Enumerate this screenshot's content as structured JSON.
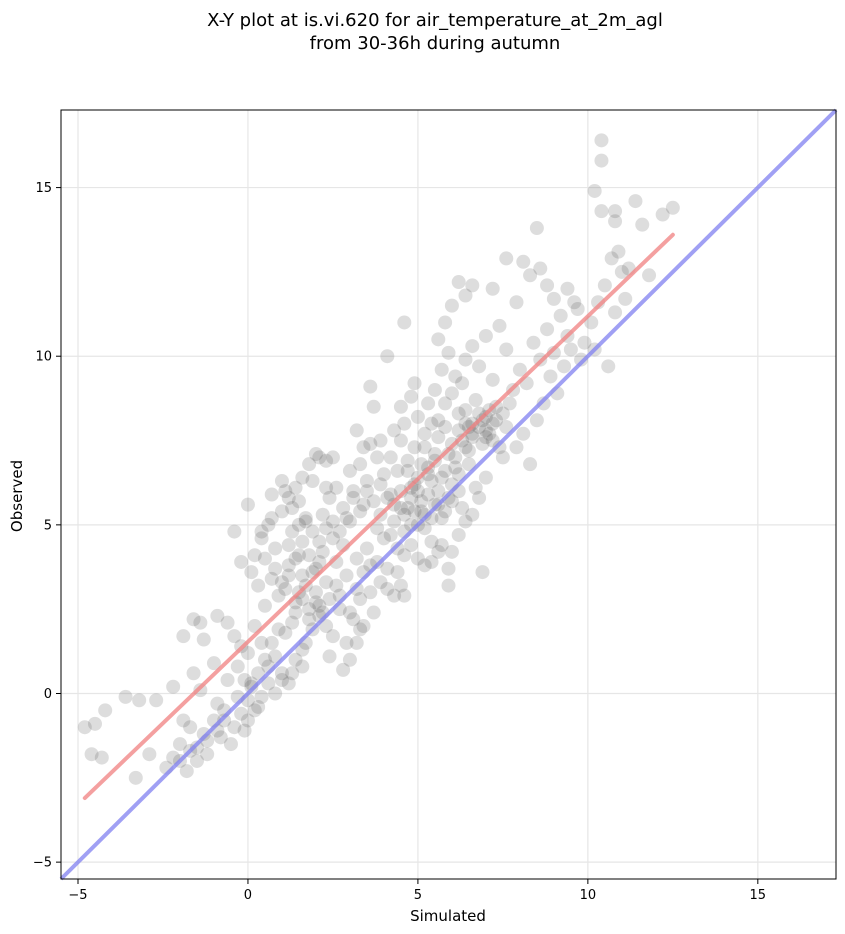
{
  "chart_data": {
    "type": "scatter",
    "title_lines": [
      "X-Y plot at is.vi.620 for air_temperature_at_2m_agl",
      "from 30-36h during autumn"
    ],
    "xlabel": "Simulated",
    "ylabel": "Observed",
    "xlim": [
      -5.5,
      17.3
    ],
    "ylim": [
      -5.5,
      17.3
    ],
    "xticks": [
      -5,
      0,
      5,
      10,
      15
    ],
    "yticks": [
      -5,
      0,
      5,
      10,
      15
    ],
    "xtick_labels": [
      "−5",
      "0",
      "5",
      "10",
      "15"
    ],
    "ytick_labels": [
      "−5",
      "0",
      "5",
      "10",
      "15"
    ],
    "grid": true,
    "point_color": "#555555",
    "regression_line": {
      "color": "#f08080",
      "x": [
        -4.8,
        12.5
      ],
      "y": [
        -3.1,
        13.6
      ]
    },
    "identity_line": {
      "color": "#8080f0",
      "x": [
        -5.5,
        17.3
      ],
      "y": [
        -5.5,
        17.3
      ]
    },
    "points": [
      [
        -4.8,
        -1.0
      ],
      [
        -4.5,
        -0.9
      ],
      [
        -4.6,
        -1.8
      ],
      [
        -4.2,
        -0.5
      ],
      [
        -4.3,
        -1.9
      ],
      [
        -3.6,
        -0.1
      ],
      [
        -3.2,
        -0.2
      ],
      [
        -2.7,
        -0.2
      ],
      [
        -3.3,
        -2.5
      ],
      [
        -2.9,
        -1.8
      ],
      [
        -2.2,
        0.2
      ],
      [
        -1.9,
        1.7
      ],
      [
        -1.6,
        2.2
      ],
      [
        -1.4,
        2.1
      ],
      [
        -1.3,
        1.6
      ],
      [
        -1.0,
        0.9
      ],
      [
        -0.9,
        2.3
      ],
      [
        -0.6,
        2.1
      ],
      [
        -0.4,
        1.7
      ],
      [
        -0.2,
        1.4
      ],
      [
        -2.4,
        -2.2
      ],
      [
        -2.0,
        -2.0
      ],
      [
        -1.8,
        -2.3
      ],
      [
        -1.5,
        -1.6
      ],
      [
        -1.3,
        -1.2
      ],
      [
        -1.0,
        -0.8
      ],
      [
        -0.7,
        -0.5
      ],
      [
        -0.5,
        -1.5
      ],
      [
        -0.3,
        -0.1
      ],
      [
        0.0,
        -0.2
      ],
      [
        -1.7,
        -1.0
      ],
      [
        -1.2,
        -1.8
      ],
      [
        -0.8,
        -1.3
      ],
      [
        -1.6,
        0.6
      ],
      [
        -1.4,
        0.1
      ],
      [
        -0.9,
        -0.3
      ],
      [
        -0.6,
        0.4
      ],
      [
        -0.3,
        0.8
      ],
      [
        0.1,
        0.3
      ],
      [
        0.3,
        -0.4
      ],
      [
        0.0,
        1.2
      ],
      [
        0.2,
        2.0
      ],
      [
        0.4,
        1.5
      ],
      [
        0.6,
        0.8
      ],
      [
        0.8,
        1.1
      ],
      [
        1.0,
        0.4
      ],
      [
        1.1,
        1.8
      ],
      [
        1.3,
        0.6
      ],
      [
        1.4,
        2.4
      ],
      [
        1.6,
        1.3
      ],
      [
        0.3,
        3.2
      ],
      [
        0.5,
        2.6
      ],
      [
        0.7,
        3.4
      ],
      [
        0.9,
        2.9
      ],
      [
        1.1,
        3.1
      ],
      [
        1.2,
        3.8
      ],
      [
        1.4,
        2.7
      ],
      [
        1.6,
        3.5
      ],
      [
        1.8,
        2.2
      ],
      [
        2.0,
        3.0
      ],
      [
        0.2,
        4.1
      ],
      [
        0.4,
        4.6
      ],
      [
        0.6,
        5.0
      ],
      [
        0.8,
        4.3
      ],
      [
        1.0,
        5.4
      ],
      [
        1.1,
        6.0
      ],
      [
        1.3,
        4.8
      ],
      [
        1.5,
        5.7
      ],
      [
        1.7,
        5.1
      ],
      [
        1.9,
        6.3
      ],
      [
        -0.4,
        4.8
      ],
      [
        -0.2,
        3.9
      ],
      [
        0.0,
        5.6
      ],
      [
        0.1,
        3.6
      ],
      [
        0.5,
        4.0
      ],
      [
        0.7,
        5.9
      ],
      [
        1.2,
        4.4
      ],
      [
        1.5,
        4.1
      ],
      [
        2.1,
        7.0
      ],
      [
        2.3,
        6.9
      ],
      [
        2.0,
        3.7
      ],
      [
        2.2,
        4.2
      ],
      [
        2.3,
        3.3
      ],
      [
        2.5,
        4.6
      ],
      [
        2.6,
        3.9
      ],
      [
        2.8,
        4.4
      ],
      [
        2.9,
        3.5
      ],
      [
        3.0,
        5.1
      ],
      [
        3.2,
        4.0
      ],
      [
        3.4,
        5.6
      ],
      [
        2.1,
        2.6
      ],
      [
        2.3,
        2.0
      ],
      [
        2.5,
        1.7
      ],
      [
        2.7,
        2.5
      ],
      [
        2.9,
        1.5
      ],
      [
        3.1,
        2.2
      ],
      [
        3.3,
        1.9
      ],
      [
        2.4,
        1.1
      ],
      [
        2.8,
        0.7
      ],
      [
        3.0,
        1.0
      ],
      [
        2.2,
        5.3
      ],
      [
        2.4,
        5.8
      ],
      [
        2.6,
        6.1
      ],
      [
        2.8,
        5.5
      ],
      [
        3.0,
        6.6
      ],
      [
        3.1,
        6.0
      ],
      [
        3.3,
        6.8
      ],
      [
        3.5,
        6.3
      ],
      [
        3.6,
        7.4
      ],
      [
        3.8,
        7.0
      ],
      [
        3.5,
        4.3
      ],
      [
        3.6,
        3.8
      ],
      [
        3.8,
        4.9
      ],
      [
        3.9,
        5.3
      ],
      [
        4.0,
        4.6
      ],
      [
        4.2,
        5.9
      ],
      [
        4.3,
        5.1
      ],
      [
        4.5,
        5.5
      ],
      [
        4.6,
        4.8
      ],
      [
        4.8,
        6.1
      ],
      [
        3.9,
        3.3
      ],
      [
        4.1,
        3.7
      ],
      [
        4.3,
        2.9
      ],
      [
        4.4,
        3.6
      ],
      [
        4.6,
        4.1
      ],
      [
        4.8,
        4.4
      ],
      [
        5.0,
        4.0
      ],
      [
        5.2,
        3.8
      ],
      [
        5.4,
        4.5
      ],
      [
        5.6,
        4.2
      ],
      [
        4.0,
        6.5
      ],
      [
        4.2,
        7.0
      ],
      [
        4.4,
        6.6
      ],
      [
        4.5,
        7.5
      ],
      [
        4.7,
        6.9
      ],
      [
        4.9,
        7.3
      ],
      [
        5.0,
        6.4
      ],
      [
        5.2,
        7.7
      ],
      [
        5.3,
        6.7
      ],
      [
        5.5,
        7.1
      ],
      [
        4.8,
        5.8
      ],
      [
        4.9,
        5.4
      ],
      [
        5.0,
        6.0
      ],
      [
        5.1,
        5.7
      ],
      [
        5.2,
        5.3
      ],
      [
        5.3,
        5.9
      ],
      [
        5.4,
        6.3
      ],
      [
        5.5,
        5.6
      ],
      [
        5.6,
        6.0
      ],
      [
        5.7,
        5.2
      ],
      [
        5.8,
        6.6
      ],
      [
        5.9,
        5.8
      ],
      [
        6.0,
        6.2
      ],
      [
        6.1,
        7.0
      ],
      [
        6.2,
        6.5
      ],
      [
        6.3,
        5.5
      ],
      [
        6.4,
        7.3
      ],
      [
        6.5,
        6.8
      ],
      [
        6.6,
        7.6
      ],
      [
        6.7,
        6.1
      ],
      [
        6.8,
        7.9
      ],
      [
        6.9,
        7.4
      ],
      [
        7.0,
        8.2
      ],
      [
        7.1,
        7.7
      ],
      [
        7.2,
        8.0
      ],
      [
        7.3,
        8.5
      ],
      [
        7.4,
        7.3
      ],
      [
        7.5,
        8.3
      ],
      [
        7.6,
        7.9
      ],
      [
        7.7,
        8.6
      ],
      [
        6.9,
        8.1
      ],
      [
        7.0,
        7.8
      ],
      [
        7.1,
        8.4
      ],
      [
        7.2,
        7.5
      ],
      [
        6.6,
        8.0
      ],
      [
        6.7,
        8.7
      ],
      [
        6.5,
        7.9
      ],
      [
        6.4,
        8.4
      ],
      [
        7.3,
        8.1
      ],
      [
        7.5,
        7.0
      ],
      [
        5.6,
        8.1
      ],
      [
        5.8,
        8.6
      ],
      [
        6.0,
        8.9
      ],
      [
        6.2,
        8.3
      ],
      [
        6.3,
        9.2
      ],
      [
        5.5,
        9.0
      ],
      [
        5.3,
        8.6
      ],
      [
        5.0,
        8.2
      ],
      [
        4.8,
        8.8
      ],
      [
        4.6,
        8.0
      ],
      [
        5.7,
        9.6
      ],
      [
        5.9,
        10.1
      ],
      [
        6.1,
        9.4
      ],
      [
        6.4,
        9.9
      ],
      [
        6.6,
        10.3
      ],
      [
        6.8,
        9.7
      ],
      [
        7.0,
        10.6
      ],
      [
        7.2,
        9.3
      ],
      [
        7.4,
        10.9
      ],
      [
        7.6,
        10.2
      ],
      [
        5.6,
        10.5
      ],
      [
        5.8,
        11.0
      ],
      [
        6.0,
        11.5
      ],
      [
        6.2,
        12.2
      ],
      [
        6.4,
        11.8
      ],
      [
        6.6,
        12.1
      ],
      [
        7.2,
        12.0
      ],
      [
        7.6,
        12.9
      ],
      [
        7.9,
        11.6
      ],
      [
        8.1,
        12.8
      ],
      [
        7.8,
        9.0
      ],
      [
        8.0,
        9.6
      ],
      [
        8.2,
        9.2
      ],
      [
        8.4,
        10.4
      ],
      [
        8.6,
        9.9
      ],
      [
        8.8,
        10.8
      ],
      [
        9.0,
        10.1
      ],
      [
        9.2,
        11.2
      ],
      [
        9.4,
        10.6
      ],
      [
        9.6,
        11.6
      ],
      [
        7.9,
        7.3
      ],
      [
        8.1,
        7.7
      ],
      [
        8.3,
        6.8
      ],
      [
        8.5,
        8.1
      ],
      [
        8.7,
        8.6
      ],
      [
        8.9,
        9.4
      ],
      [
        9.1,
        8.9
      ],
      [
        9.3,
        9.7
      ],
      [
        9.5,
        10.2
      ],
      [
        9.8,
        9.9
      ],
      [
        9.9,
        10.4
      ],
      [
        10.1,
        11.0
      ],
      [
        10.3,
        11.6
      ],
      [
        10.5,
        12.1
      ],
      [
        10.8,
        11.3
      ],
      [
        11.0,
        12.5
      ],
      [
        11.2,
        12.6
      ],
      [
        10.9,
        13.1
      ],
      [
        10.6,
        9.7
      ],
      [
        10.2,
        10.2
      ],
      [
        10.2,
        14.9
      ],
      [
        10.4,
        15.8
      ],
      [
        10.4,
        16.4
      ],
      [
        10.4,
        14.3
      ],
      [
        10.8,
        14.3
      ],
      [
        10.8,
        14.0
      ],
      [
        11.4,
        14.6
      ],
      [
        12.2,
        14.2
      ],
      [
        12.5,
        14.4
      ],
      [
        11.6,
        13.9
      ],
      [
        8.6,
        12.6
      ],
      [
        8.5,
        13.8
      ],
      [
        8.3,
        12.4
      ],
      [
        8.8,
        12.1
      ],
      [
        9.0,
        11.7
      ],
      [
        9.4,
        12.0
      ],
      [
        9.7,
        11.4
      ],
      [
        11.8,
        12.4
      ],
      [
        10.7,
        12.9
      ],
      [
        11.1,
        11.7
      ],
      [
        4.1,
        10.0
      ],
      [
        4.6,
        11.0
      ],
      [
        3.6,
        9.1
      ],
      [
        3.7,
        8.5
      ],
      [
        4.3,
        7.8
      ],
      [
        4.5,
        8.5
      ],
      [
        3.4,
        7.3
      ],
      [
        3.2,
        7.8
      ],
      [
        3.9,
        7.5
      ],
      [
        4.9,
        9.2
      ],
      [
        3.7,
        2.4
      ],
      [
        3.4,
        2.0
      ],
      [
        3.2,
        1.5
      ],
      [
        3.3,
        2.8
      ],
      [
        3.0,
        2.4
      ],
      [
        2.7,
        2.9
      ],
      [
        4.1,
        3.1
      ],
      [
        4.5,
        3.2
      ],
      [
        4.6,
        2.9
      ],
      [
        6.9,
        3.6
      ],
      [
        5.9,
        3.2
      ],
      [
        5.4,
        3.9
      ],
      [
        5.7,
        4.4
      ],
      [
        6.2,
        4.7
      ],
      [
        6.4,
        5.1
      ],
      [
        6.6,
        5.3
      ],
      [
        5.9,
        3.7
      ],
      [
        6.0,
        4.2
      ],
      [
        6.8,
        5.8
      ],
      [
        7.0,
        6.4
      ],
      [
        -0.1,
        -1.1
      ],
      [
        0.0,
        -0.8
      ],
      [
        0.2,
        -0.5
      ],
      [
        0.4,
        -0.1
      ],
      [
        0.6,
        0.3
      ],
      [
        0.8,
        0.0
      ],
      [
        1.0,
        0.6
      ],
      [
        1.2,
        0.3
      ],
      [
        1.4,
        1.0
      ],
      [
        1.6,
        0.8
      ],
      [
        1.7,
        1.5
      ],
      [
        1.9,
        1.9
      ],
      [
        2.1,
        2.3
      ],
      [
        1.3,
        2.1
      ],
      [
        0.9,
        1.9
      ],
      [
        0.7,
        1.5
      ],
      [
        0.5,
        1.0
      ],
      [
        0.3,
        0.6
      ],
      [
        0.1,
        0.2
      ],
      [
        -0.1,
        0.4
      ],
      [
        1.5,
        3.0
      ],
      [
        1.7,
        3.2
      ],
      [
        1.9,
        3.6
      ],
      [
        2.1,
        3.9
      ],
      [
        1.8,
        4.1
      ],
      [
        1.6,
        4.5
      ],
      [
        1.4,
        4.0
      ],
      [
        1.2,
        3.5
      ],
      [
        1.0,
        3.3
      ],
      [
        0.8,
        3.7
      ],
      [
        2.5,
        7.0
      ],
      [
        2.0,
        7.1
      ],
      [
        1.8,
        6.8
      ],
      [
        1.6,
        6.4
      ],
      [
        1.4,
        6.1
      ],
      [
        1.2,
        5.8
      ],
      [
        1.0,
        6.3
      ],
      [
        0.7,
        5.2
      ],
      [
        0.4,
        4.8
      ],
      [
        2.3,
        6.1
      ],
      [
        3.2,
        3.1
      ],
      [
        3.4,
        3.6
      ],
      [
        3.6,
        3.0
      ],
      [
        3.8,
        3.9
      ],
      [
        2.6,
        3.2
      ],
      [
        2.4,
        2.8
      ],
      [
        2.2,
        2.4
      ],
      [
        2.0,
        2.7
      ],
      [
        1.8,
        2.5
      ],
      [
        1.6,
        2.8
      ],
      [
        4.7,
        6.6
      ],
      [
        4.9,
        6.2
      ],
      [
        5.1,
        6.8
      ],
      [
        5.3,
        6.5
      ],
      [
        5.5,
        6.9
      ],
      [
        5.7,
        6.4
      ],
      [
        5.9,
        7.1
      ],
      [
        6.1,
        6.7
      ],
      [
        6.3,
        7.5
      ],
      [
        6.5,
        7.2
      ],
      [
        5.6,
        7.6
      ],
      [
        5.8,
        7.9
      ],
      [
        6.0,
        7.4
      ],
      [
        6.2,
        7.8
      ],
      [
        6.4,
        8.0
      ],
      [
        6.6,
        7.7
      ],
      [
        6.8,
        8.3
      ],
      [
        7.0,
        7.6
      ],
      [
        5.4,
        8.0
      ],
      [
        5.2,
        7.3
      ],
      [
        4.3,
        5.6
      ],
      [
        4.5,
        6.0
      ],
      [
        4.7,
        5.5
      ],
      [
        4.1,
        5.8
      ],
      [
        3.9,
        6.2
      ],
      [
        3.7,
        5.7
      ],
      [
        3.5,
        6.0
      ],
      [
        3.3,
        5.4
      ],
      [
        3.1,
        5.8
      ],
      [
        2.9,
        5.2
      ],
      [
        2.7,
        4.8
      ],
      [
        2.5,
        5.1
      ],
      [
        2.3,
        4.9
      ],
      [
        2.1,
        4.5
      ],
      [
        1.9,
        4.8
      ],
      [
        1.7,
        5.2
      ],
      [
        1.5,
        5.0
      ],
      [
        1.3,
        5.5
      ],
      [
        4.4,
        4.3
      ],
      [
        4.2,
        4.7
      ],
      [
        5.0,
        5.0
      ],
      [
        5.2,
        4.9
      ],
      [
        5.4,
        5.2
      ],
      [
        5.6,
        5.6
      ],
      [
        5.8,
        5.4
      ],
      [
        6.0,
        5.7
      ],
      [
        6.2,
        6.0
      ],
      [
        4.6,
        5.3
      ],
      [
        4.8,
        5.0
      ],
      [
        5.1,
        5.4
      ],
      [
        -2.0,
        -1.5
      ],
      [
        -1.7,
        -1.7
      ],
      [
        -1.5,
        -2.0
      ],
      [
        -1.2,
        -1.4
      ],
      [
        -0.9,
        -1.1
      ],
      [
        -0.7,
        -0.8
      ],
      [
        -0.4,
        -1.0
      ],
      [
        -0.2,
        -0.6
      ],
      [
        -1.9,
        -0.8
      ],
      [
        -2.2,
        -1.9
      ]
    ]
  }
}
